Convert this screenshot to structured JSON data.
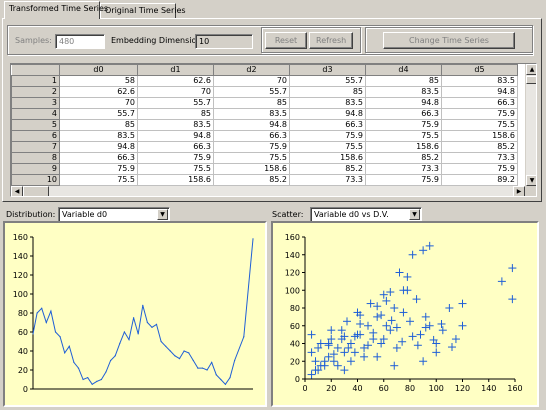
{
  "tabs": [
    {
      "label": "Transformed Time Series",
      "active": true
    },
    {
      "label": "Original Time Series",
      "active": false
    }
  ],
  "controls": {
    "samples_label": "Samples:",
    "samples_value": "480",
    "embedding_label": "Embedding Dimension:",
    "embedding_value": "10",
    "reset_label": "Reset",
    "refresh_label": "Refresh",
    "change_label": "Change Time Series"
  },
  "table": {
    "columns": [
      "d0",
      "d1",
      "d2",
      "d3",
      "d4",
      "d5"
    ],
    "rows": [
      {
        "index": "1",
        "cells": [
          "58",
          "62.6",
          "70",
          "55.7",
          "85",
          "83.5"
        ]
      },
      {
        "index": "2",
        "cells": [
          "62.6",
          "70",
          "55.7",
          "85",
          "83.5",
          "94.8"
        ]
      },
      {
        "index": "3",
        "cells": [
          "70",
          "55.7",
          "85",
          "83.5",
          "94.8",
          "66.3"
        ]
      },
      {
        "index": "4",
        "cells": [
          "55.7",
          "85",
          "83.5",
          "94.8",
          "66.3",
          "75.9"
        ]
      },
      {
        "index": "5",
        "cells": [
          "85",
          "83.5",
          "94.8",
          "66.3",
          "75.9",
          "75.5"
        ]
      },
      {
        "index": "6",
        "cells": [
          "83.5",
          "94.8",
          "66.3",
          "75.9",
          "75.5",
          "158.6"
        ]
      },
      {
        "index": "7",
        "cells": [
          "94.8",
          "66.3",
          "75.9",
          "75.5",
          "158.6",
          "85.2"
        ]
      },
      {
        "index": "8",
        "cells": [
          "66.3",
          "75.9",
          "75.5",
          "158.6",
          "85.2",
          "73.3"
        ]
      },
      {
        "index": "9",
        "cells": [
          "75.9",
          "75.5",
          "158.6",
          "85.2",
          "73.3",
          "75.9"
        ]
      },
      {
        "index": "10",
        "cells": [
          "75.5",
          "158.6",
          "85.2",
          "73.3",
          "75.9",
          "89.2"
        ]
      }
    ]
  },
  "distribution": {
    "label": "Distribution:",
    "selected": "Variable d0"
  },
  "scatter": {
    "label": "Scatter:",
    "selected": "Variable d0 vs D.V."
  },
  "colors": {
    "series": "#1f5fd6",
    "chart_bg": "#ffffc4",
    "window_bg": "#d4d0c8"
  },
  "icons": [
    "dropdown-arrow-icon",
    "scroll-up-arrow-icon",
    "scroll-down-arrow-icon",
    "scroll-left-arrow-icon",
    "scroll-right-arrow-icon"
  ],
  "chart_data": [
    {
      "type": "line",
      "x": [
        1,
        10,
        20,
        30,
        40,
        50,
        60,
        70,
        80,
        90,
        100,
        110,
        120,
        130,
        140,
        150,
        160,
        170,
        180,
        190,
        200,
        210,
        220,
        230,
        240,
        250,
        260,
        270,
        280,
        290,
        300,
        310,
        320,
        330,
        340,
        350,
        360,
        370,
        380,
        390,
        400,
        410,
        420,
        430,
        440,
        460,
        480
      ],
      "y": [
        58,
        80,
        85,
        70,
        82,
        60,
        55,
        38,
        45,
        28,
        22,
        10,
        12,
        5,
        8,
        10,
        18,
        30,
        35,
        48,
        60,
        52,
        75,
        58,
        88,
        70,
        65,
        68,
        50,
        45,
        40,
        35,
        32,
        40,
        38,
        30,
        22,
        22,
        20,
        28,
        15,
        10,
        5,
        12,
        30,
        55,
        158
      ],
      "ylim": [
        0,
        160
      ],
      "yticks": [
        0,
        20,
        40,
        60,
        80,
        100,
        120,
        140,
        160
      ],
      "title": "",
      "xlabel": "",
      "ylabel": ""
    },
    {
      "type": "scatter",
      "x": [
        5,
        8,
        10,
        12,
        15,
        18,
        20,
        22,
        25,
        28,
        30,
        32,
        35,
        38,
        40,
        42,
        45,
        48,
        50,
        52,
        55,
        58,
        60,
        62,
        65,
        68,
        70,
        72,
        75,
        78,
        80,
        82,
        85,
        88,
        90,
        92,
        95,
        100,
        105,
        110,
        115,
        120,
        150,
        158,
        158,
        95,
        78,
        75,
        120,
        100,
        90,
        68,
        60,
        55,
        45,
        40,
        35,
        30,
        25,
        20,
        15,
        10,
        8,
        5,
        5,
        12,
        18,
        22,
        28,
        33,
        38,
        42,
        48,
        52,
        58,
        62,
        66,
        70,
        74,
        82,
        86,
        92,
        98,
        104,
        112,
        65,
        55,
        42,
        30,
        18
      ],
      "y": [
        30,
        20,
        10,
        40,
        15,
        25,
        55,
        20,
        35,
        45,
        10,
        65,
        40,
        30,
        75,
        50,
        25,
        60,
        85,
        45,
        70,
        40,
        95,
        60,
        55,
        80,
        35,
        120,
        75,
        100,
        65,
        140,
        90,
        50,
        145,
        70,
        60,
        40,
        55,
        80,
        45,
        60,
        110,
        125,
        90,
        150,
        115,
        100,
        85,
        30,
        20,
        15,
        45,
        25,
        35,
        50,
        20,
        30,
        15,
        45,
        20,
        35,
        10,
        50,
        5,
        15,
        40,
        28,
        55,
        35,
        48,
        62,
        38,
        52,
        72,
        88,
        66,
        58,
        42,
        48,
        38,
        58,
        44,
        62,
        36,
        98,
        82,
        72,
        48,
        38
      ],
      "xlim": [
        0,
        160
      ],
      "ylim": [
        0,
        160
      ],
      "xticks": [
        0,
        20,
        40,
        60,
        80,
        100,
        120,
        140,
        160
      ],
      "yticks": [
        0,
        20,
        40,
        60,
        80,
        100,
        120,
        140,
        160
      ],
      "marker": "+",
      "title": "",
      "xlabel": "",
      "ylabel": ""
    }
  ]
}
